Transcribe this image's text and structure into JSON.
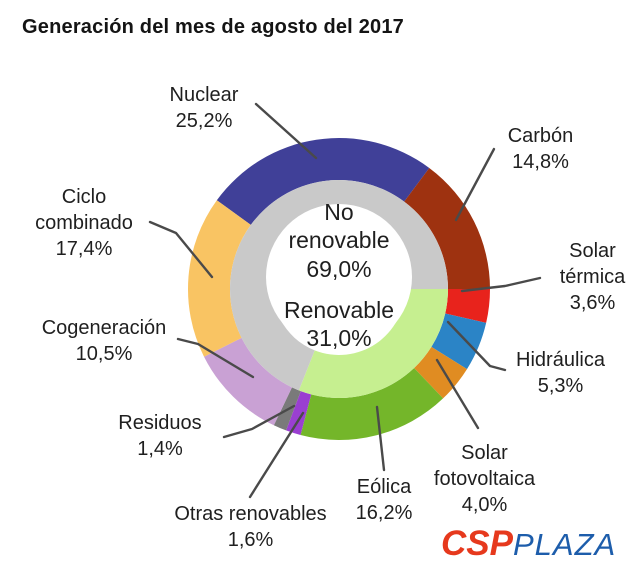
{
  "title": "Generación del mes de agosto del 2017",
  "chart_data": {
    "type": "pie",
    "subtype": "donut",
    "title": "Generación del mes de agosto del 2017",
    "units": "%",
    "legend_position": "callout-labels",
    "outer_start_angle_deg": -54,
    "segments": [
      {
        "id": "nuclear",
        "label": "Nuclear",
        "label_display": "Nuclear",
        "value": 25.2,
        "value_text": "25,2%",
        "color": "#404098"
      },
      {
        "id": "carbon",
        "label": "Carbón",
        "label_display": "Carbón",
        "value": 14.8,
        "value_text": "14,8%",
        "color": "#9e3210"
      },
      {
        "id": "solar-termica",
        "label": "Solar térmica",
        "label_display": "Solar\ntérmica",
        "value": 3.6,
        "value_text": "3,6%",
        "color": "#e8231c"
      },
      {
        "id": "hidraulica",
        "label": "Hidráulica",
        "label_display": "Hidráulica",
        "value": 5.3,
        "value_text": "5,3%",
        "color": "#2b84c6"
      },
      {
        "id": "solar-fotovoltaica",
        "label": "Solar fotovoltaica",
        "label_display": "Solar\nfotovoltaica",
        "value": 4.0,
        "value_text": "4,0%",
        "color": "#e08c22"
      },
      {
        "id": "eolica",
        "label": "Eólica",
        "label_display": "Eólica",
        "value": 16.2,
        "value_text": "16,2%",
        "color": "#74b62a"
      },
      {
        "id": "otras-renovables",
        "label": "Otras renovables",
        "label_display": "Otras renovables",
        "value": 1.6,
        "value_text": "1,6%",
        "color": "#9a3fd1"
      },
      {
        "id": "residuos",
        "label": "Residuos",
        "label_display": "Residuos",
        "value": 1.4,
        "value_text": "1,4%",
        "color": "#7a7a7a"
      },
      {
        "id": "cogeneracion",
        "label": "Cogeneración",
        "label_display": "Cogeneración",
        "value": 10.5,
        "value_text": "10,5%",
        "color": "#c9a1d4"
      },
      {
        "id": "ciclo-combinado",
        "label": "Ciclo combinado",
        "label_display": "Ciclo\ncombinado",
        "value": 17.4,
        "value_text": "17,4%",
        "color": "#f9c463"
      }
    ],
    "inner_ring": {
      "start_angle_deg": 90,
      "segments": [
        {
          "id": "renovable",
          "label": "Renovable",
          "value": 31.0,
          "color": "#c6ef90"
        },
        {
          "id": "no-renovable",
          "label": "No renovable",
          "value": 69.0,
          "color": "#c9c9c9"
        }
      ]
    },
    "center_labels": [
      {
        "id": "no-renovable",
        "label_display": "No\nrenovable",
        "value_text": "69,0%"
      },
      {
        "id": "renovable",
        "label_display": "Renovable",
        "value_text": "31,0%"
      }
    ]
  },
  "logo": {
    "part1": "CSP",
    "part2": "PLAZA",
    "part1_color": "#e6391d",
    "part2_color": "#1d5dab"
  }
}
